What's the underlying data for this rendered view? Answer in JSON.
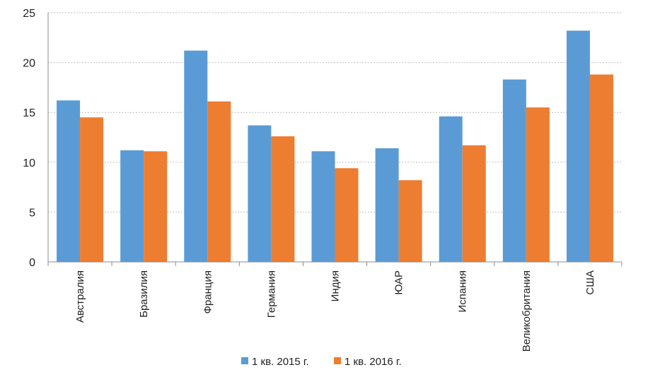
{
  "colors": {
    "series_2015": "#5B9BD5",
    "series_2016": "#ED7D31",
    "gridline": "#bfbfbf",
    "axis": "#8c8c8c"
  },
  "chart_data": {
    "type": "bar",
    "categories": [
      "Австралия",
      "Бразилия",
      "Франция",
      "Германия",
      "Индия",
      "ЮАР",
      "Испания",
      "Великобритания",
      "США"
    ],
    "series": [
      {
        "name": "1 кв. 2015 г.",
        "values": [
          16.2,
          11.2,
          21.2,
          13.7,
          11.1,
          11.4,
          14.6,
          18.3,
          23.2
        ]
      },
      {
        "name": "1 кв. 2016 г.",
        "values": [
          14.5,
          11.1,
          16.1,
          12.6,
          9.4,
          8.2,
          11.7,
          15.5,
          18.8
        ]
      }
    ],
    "yticks": [
      "0",
      "5",
      "10",
      "15",
      "20",
      "25"
    ],
    "ylim": [
      0,
      25
    ],
    "grid": true,
    "legend_position": "bottom-center"
  }
}
